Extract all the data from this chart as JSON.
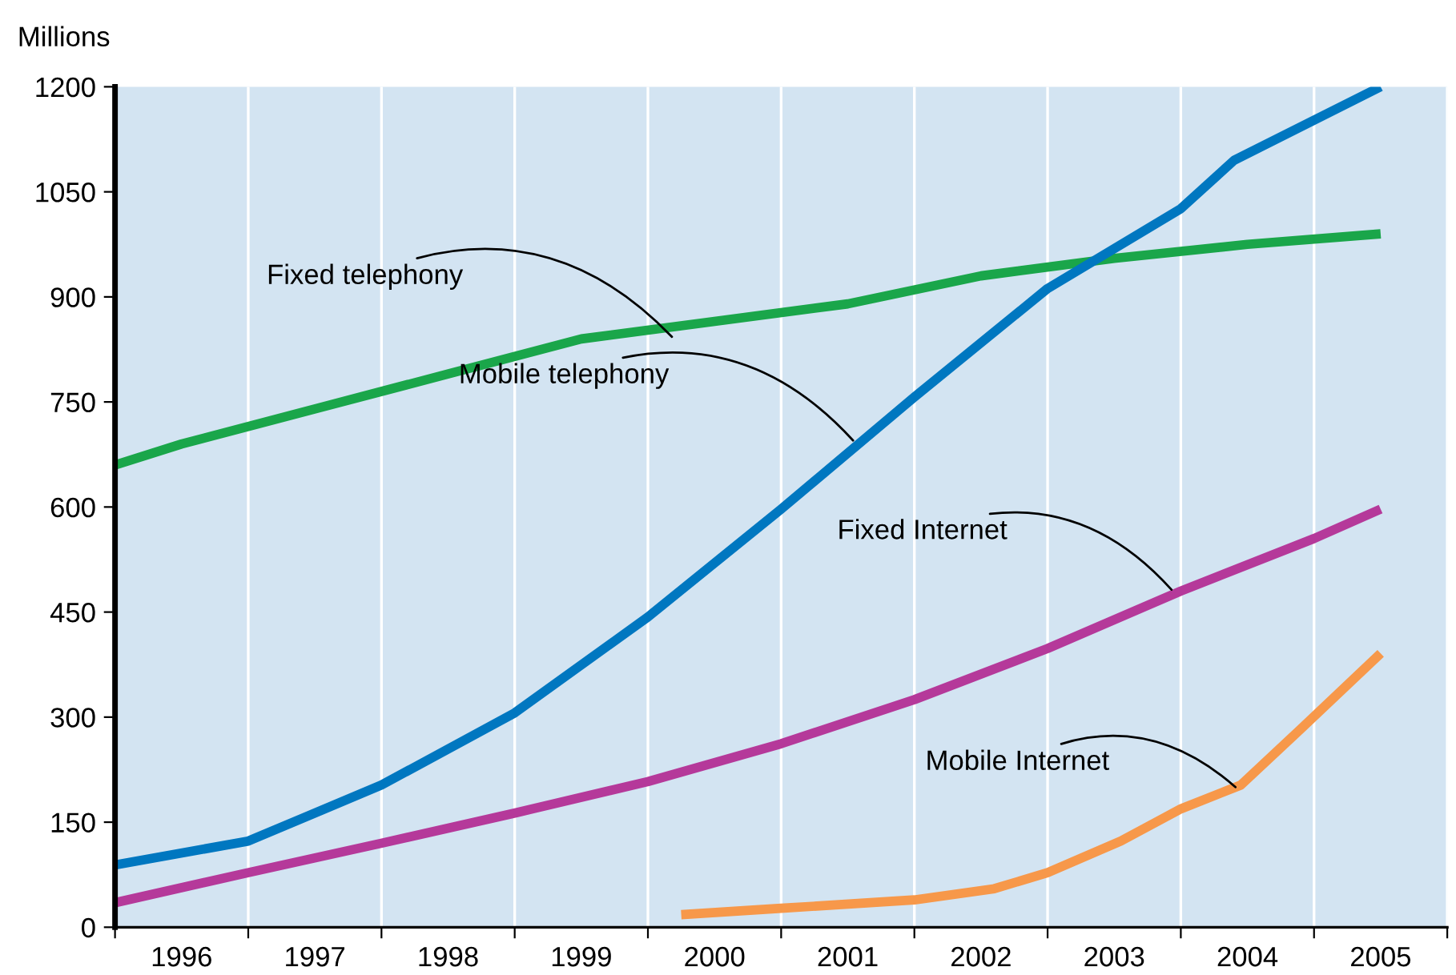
{
  "chart_data": {
    "type": "line",
    "ylabel": "Millions",
    "xlim": [
      1995.5,
      2005.5
    ],
    "ylim": [
      0,
      1200
    ],
    "yticks": [
      0,
      150,
      300,
      450,
      600,
      750,
      900,
      1050,
      1200
    ],
    "xticks": [
      {
        "value": 1995.5,
        "label": null
      },
      {
        "value": 1996,
        "label": "1996"
      },
      {
        "value": 1996.5,
        "label": null
      },
      {
        "value": 1997,
        "label": "1997"
      },
      {
        "value": 1997.5,
        "label": null
      },
      {
        "value": 1998,
        "label": "1998"
      },
      {
        "value": 1998.5,
        "label": null
      },
      {
        "value": 1999,
        "label": "1999"
      },
      {
        "value": 1999.5,
        "label": null
      },
      {
        "value": 2000,
        "label": "2000"
      },
      {
        "value": 2000.5,
        "label": null
      },
      {
        "value": 2001,
        "label": "2001"
      },
      {
        "value": 2001.5,
        "label": null
      },
      {
        "value": 2002,
        "label": "2002"
      },
      {
        "value": 2002.5,
        "label": null
      },
      {
        "value": 2003,
        "label": "2003"
      },
      {
        "value": 2003.5,
        "label": null
      },
      {
        "value": 2004,
        "label": "2004"
      },
      {
        "value": 2004.5,
        "label": null
      },
      {
        "value": 2005,
        "label": "2005"
      },
      {
        "value": 2005.5,
        "label": null
      }
    ],
    "grid": "x",
    "legend": false,
    "marker": "none",
    "line_style": "solid",
    "series": [
      {
        "color": "#1aa64a",
        "x": [
          1995.5,
          1996,
          1997,
          1998,
          1999,
          2000,
          2001,
          2002,
          2003,
          2004,
          2005
        ],
        "values": [
          660,
          690,
          740,
          790,
          840,
          865,
          890,
          930,
          955,
          975,
          990
        ]
      },
      {
        "color": "#0077c0",
        "x": [
          1995.5,
          1996.5,
          1997.5,
          1998.5,
          1999.5,
          2000.5,
          2001.5,
          2002.5,
          2003.5,
          2003.9,
          2005
        ],
        "values": [
          89,
          123,
          203,
          306,
          443,
          597,
          757,
          912,
          1026,
          1095,
          1200
        ]
      },
      {
        "color": "#b5399a",
        "x": [
          1995.5,
          1996.5,
          1997.5,
          1998.5,
          1999.5,
          2000.5,
          2001.5,
          2002.5,
          2003.5,
          2004.5,
          2005
        ],
        "values": [
          35,
          78,
          120,
          163,
          208,
          262,
          325,
          398,
          480,
          555,
          597
        ]
      },
      {
        "color": "#f7984a",
        "x": [
          1999.75,
          2000.5,
          2001.5,
          2002.1,
          2002.5,
          2003.05,
          2003.5,
          2003.95,
          2004.4,
          2005
        ],
        "values": [
          18,
          27,
          39,
          55,
          78,
          123,
          169,
          203,
          283,
          391
        ]
      }
    ],
    "annotations": [
      {
        "text": "Fixed telephony",
        "x": 1999.68,
        "y": 843
      },
      {
        "text": "Mobile telephony",
        "x": 2001.04,
        "y": 695
      },
      {
        "text": "Fixed Internet",
        "x": 2003.43,
        "y": 482
      },
      {
        "text": "Mobile Internet",
        "x": 2003.91,
        "y": 200
      }
    ]
  }
}
